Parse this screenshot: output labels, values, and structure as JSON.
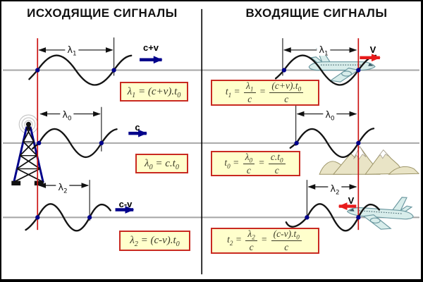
{
  "titles": {
    "outgoing": "ИСХОДЯЩИЕ СИГНАЛЫ",
    "incoming": "ВХОДЯЩИЕ СИГНАЛЫ"
  },
  "wave_labels": {
    "lambda1": [
      "λ",
      {
        "sub": "1"
      }
    ],
    "lambda0": [
      "λ",
      {
        "sub": "0"
      }
    ],
    "lambda2": [
      "λ",
      {
        "sub": "2"
      }
    ]
  },
  "speed_labels": {
    "row1_left": "c+v",
    "row2_left": "c",
    "row3_left": "c-v",
    "row1_right": "V",
    "row3_right": "V"
  },
  "formulas": {
    "out1": [
      "λ",
      {
        "sub": "1"
      },
      " = (c+v).t",
      {
        "sub": "0"
      }
    ],
    "out0": [
      "λ",
      {
        "sub": "0"
      },
      " = c.t",
      {
        "sub": "0"
      }
    ],
    "out2": [
      "λ",
      {
        "sub": "2"
      },
      " = (c-v).t",
      {
        "sub": "0"
      }
    ],
    "in1": [
      "t",
      {
        "sub": "1"
      },
      " = ",
      {
        "frac": {
          "num": [
            "λ",
            {
              "sub": "1"
            }
          ],
          "den": [
            "c"
          ]
        }
      },
      " = ",
      {
        "frac": {
          "num": [
            "(c+v).t",
            {
              "sub": "0"
            }
          ],
          "den": [
            "c"
          ]
        }
      }
    ],
    "in0": [
      "t",
      {
        "sub": "0"
      },
      " = ",
      {
        "frac": {
          "num": [
            "λ",
            {
              "sub": "0"
            }
          ],
          "den": [
            "c"
          ]
        }
      },
      " = ",
      {
        "frac": {
          "num": [
            "c.t",
            {
              "sub": "0"
            }
          ],
          "den": [
            "c"
          ]
        }
      }
    ],
    "in2": [
      "t",
      {
        "sub": "2"
      },
      " = ",
      {
        "frac": {
          "num": [
            "λ",
            {
              "sub": "2"
            }
          ],
          "den": [
            "c"
          ]
        }
      },
      " = ",
      {
        "frac": {
          "num": [
            "(c-v).t",
            {
              "sub": "0"
            }
          ],
          "den": [
            "c"
          ]
        }
      }
    ]
  },
  "colors": {
    "box_bg": "#ffffcc",
    "box_border": "#c92a21",
    "red_line": "#cc1111",
    "red_arrow": "#e81c1c",
    "navy": "#00008b",
    "gray_line": "#a5a5a5",
    "wave": "#141414"
  }
}
